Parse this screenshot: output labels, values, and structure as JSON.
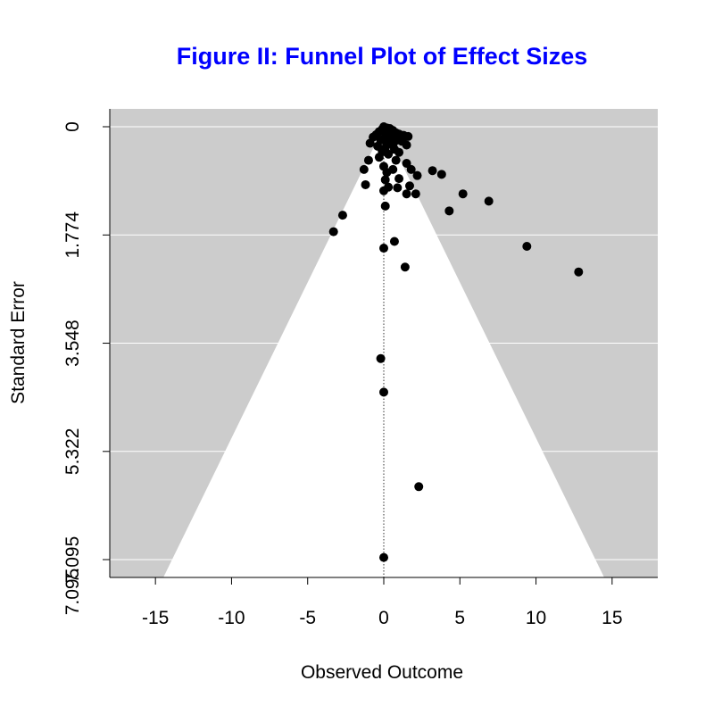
{
  "colors": {
    "title": "#0000ff",
    "plot_background": "#cccccc",
    "funnel_fill": "#ffffff",
    "gridline": "#ffffff",
    "points": "#000000"
  },
  "chart_data": {
    "type": "scatter",
    "title": "Figure II: Funnel Plot of Effect Sizes",
    "xlabel": "Observed Outcome",
    "ylabel": "Standard Error",
    "xlim": [
      -18,
      18
    ],
    "ylim": [
      7.095,
      0
    ],
    "y_reversed": true,
    "x_ticks": [
      -15,
      -10,
      -5,
      0,
      5,
      10,
      15
    ],
    "x_tick_labels": [
      "-15",
      "-10",
      "-5",
      "0",
      "5",
      "10",
      "15"
    ],
    "y_ticks": [
      0,
      1.774,
      3.548,
      5.322,
      7.095
    ],
    "y_tick_labels": [
      "0",
      "1.774",
      "3.548",
      "5.322",
      "7.095"
    ],
    "y_extra_label": "7.095",
    "grid": true,
    "reference_line_x": 0,
    "funnel_multiplier": 1.96,
    "points": [
      {
        "x": 0.0,
        "y": 0.0
      },
      {
        "x": 0.2,
        "y": 0.02
      },
      {
        "x": -0.1,
        "y": 0.04
      },
      {
        "x": 0.4,
        "y": 0.03
      },
      {
        "x": 0.6,
        "y": 0.06
      },
      {
        "x": -0.3,
        "y": 0.08
      },
      {
        "x": 0.1,
        "y": 0.1
      },
      {
        "x": 0.8,
        "y": 0.1
      },
      {
        "x": 1.0,
        "y": 0.12
      },
      {
        "x": -0.5,
        "y": 0.13
      },
      {
        "x": 0.3,
        "y": 0.15
      },
      {
        "x": 1.3,
        "y": 0.14
      },
      {
        "x": 1.6,
        "y": 0.16
      },
      {
        "x": -0.7,
        "y": 0.17
      },
      {
        "x": 0.5,
        "y": 0.19
      },
      {
        "x": 0.0,
        "y": 0.2
      },
      {
        "x": -0.2,
        "y": 0.22
      },
      {
        "x": 0.9,
        "y": 0.22
      },
      {
        "x": 1.2,
        "y": 0.24
      },
      {
        "x": -0.9,
        "y": 0.27
      },
      {
        "x": 0.2,
        "y": 0.28
      },
      {
        "x": 0.6,
        "y": 0.3
      },
      {
        "x": 1.5,
        "y": 0.3
      },
      {
        "x": -0.4,
        "y": 0.32
      },
      {
        "x": 0.1,
        "y": 0.35
      },
      {
        "x": 0.7,
        "y": 0.37
      },
      {
        "x": -0.1,
        "y": 0.4
      },
      {
        "x": 1.0,
        "y": 0.42
      },
      {
        "x": 0.3,
        "y": 0.45
      },
      {
        "x": -0.3,
        "y": 0.5
      },
      {
        "x": 0.8,
        "y": 0.55
      },
      {
        "x": -1.0,
        "y": 0.55
      },
      {
        "x": 1.5,
        "y": 0.6
      },
      {
        "x": 0.0,
        "y": 0.65
      },
      {
        "x": -1.3,
        "y": 0.7
      },
      {
        "x": 0.2,
        "y": 0.75
      },
      {
        "x": 0.6,
        "y": 0.7
      },
      {
        "x": 1.8,
        "y": 0.7
      },
      {
        "x": 2.2,
        "y": 0.8
      },
      {
        "x": 3.2,
        "y": 0.72
      },
      {
        "x": 3.8,
        "y": 0.78
      },
      {
        "x": 0.1,
        "y": 0.87
      },
      {
        "x": 1.0,
        "y": 0.85
      },
      {
        "x": -1.2,
        "y": 0.95
      },
      {
        "x": 0.3,
        "y": 0.99
      },
      {
        "x": 0.9,
        "y": 1.0
      },
      {
        "x": 1.7,
        "y": 0.97
      },
      {
        "x": 0.0,
        "y": 1.05
      },
      {
        "x": 1.5,
        "y": 1.1
      },
      {
        "x": 2.1,
        "y": 1.1
      },
      {
        "x": 5.2,
        "y": 1.1
      },
      {
        "x": 6.9,
        "y": 1.22
      },
      {
        "x": 0.1,
        "y": 1.3
      },
      {
        "x": 4.3,
        "y": 1.38
      },
      {
        "x": -2.7,
        "y": 1.45
      },
      {
        "x": -3.3,
        "y": 1.72
      },
      {
        "x": 0.7,
        "y": 1.88
      },
      {
        "x": 0.0,
        "y": 1.99
      },
      {
        "x": 9.4,
        "y": 1.96
      },
      {
        "x": 1.4,
        "y": 2.3
      },
      {
        "x": 12.8,
        "y": 2.38
      },
      {
        "x": -0.2,
        "y": 3.8
      },
      {
        "x": 0.0,
        "y": 4.35
      },
      {
        "x": 2.3,
        "y": 5.9
      },
      {
        "x": 0.0,
        "y": 7.06
      }
    ]
  }
}
